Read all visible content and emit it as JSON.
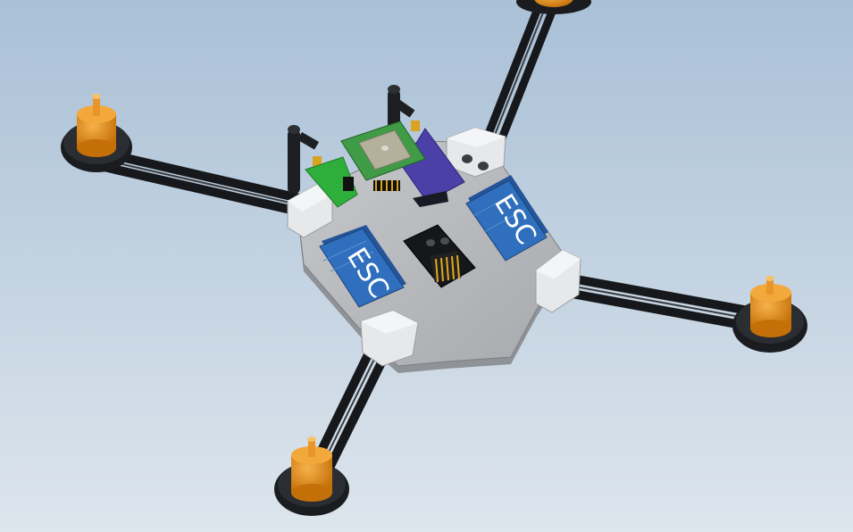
{
  "scene": {
    "subject": "quadcopter-frame-cad-render",
    "colors": {
      "background_top": "#a9c0d6",
      "background_bottom": "#dde5ed",
      "plate": "#b9bbbf",
      "plate_edge": "#8f9297",
      "arm": "#16181b",
      "motor": "#e38a12",
      "motor_mount": "#1a1c1f",
      "esc": "#2f6fbd",
      "esc_dark": "#24559a",
      "gps": "#3f9b45",
      "receiver": "#4b3fa8",
      "green_board": "#2eae3a"
    }
  },
  "labels": {
    "esc_left": "ESC",
    "esc_right": "ESC"
  }
}
